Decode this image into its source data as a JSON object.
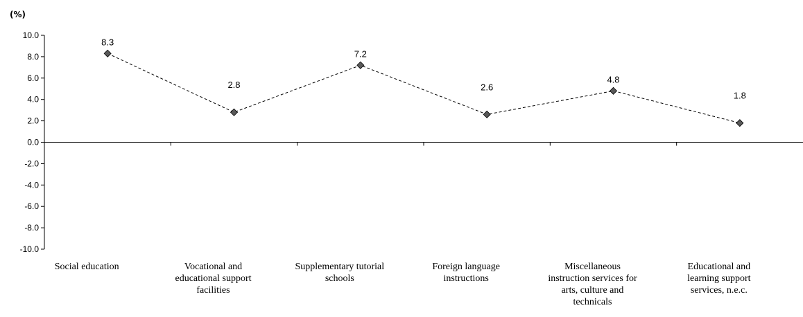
{
  "chart_data": {
    "type": "line",
    "unit_label": "(%)",
    "categories": [
      [
        "Social education"
      ],
      [
        "Vocational and",
        "educational support",
        "facilities"
      ],
      [
        "Supplementary tutorial",
        "schools"
      ],
      [
        "Foreign language",
        "instructions"
      ],
      [
        "Miscellaneous",
        "instruction services for",
        "arts, culture and",
        "technicals"
      ],
      [
        "Educational and",
        "learning support",
        "services, n.e.c."
      ]
    ],
    "values": [
      8.3,
      2.8,
      7.2,
      2.6,
      4.8,
      1.8
    ],
    "value_labels": [
      "8.3",
      "2.8",
      "7.2",
      "2.6",
      "4.8",
      "1.8"
    ],
    "ylim": [
      -10,
      10
    ],
    "yticks": [
      "10.0",
      "8.0",
      "6.0",
      "4.0",
      "2.0",
      "0.0",
      "-2.0",
      "-4.0",
      "-6.0",
      "-8.0",
      "-10.0"
    ],
    "line_style": "dashed",
    "marker": "diamond",
    "colors": {
      "line": "#000000",
      "marker": "#595959",
      "marker_edge": "#000000",
      "axis": "#000000"
    }
  }
}
